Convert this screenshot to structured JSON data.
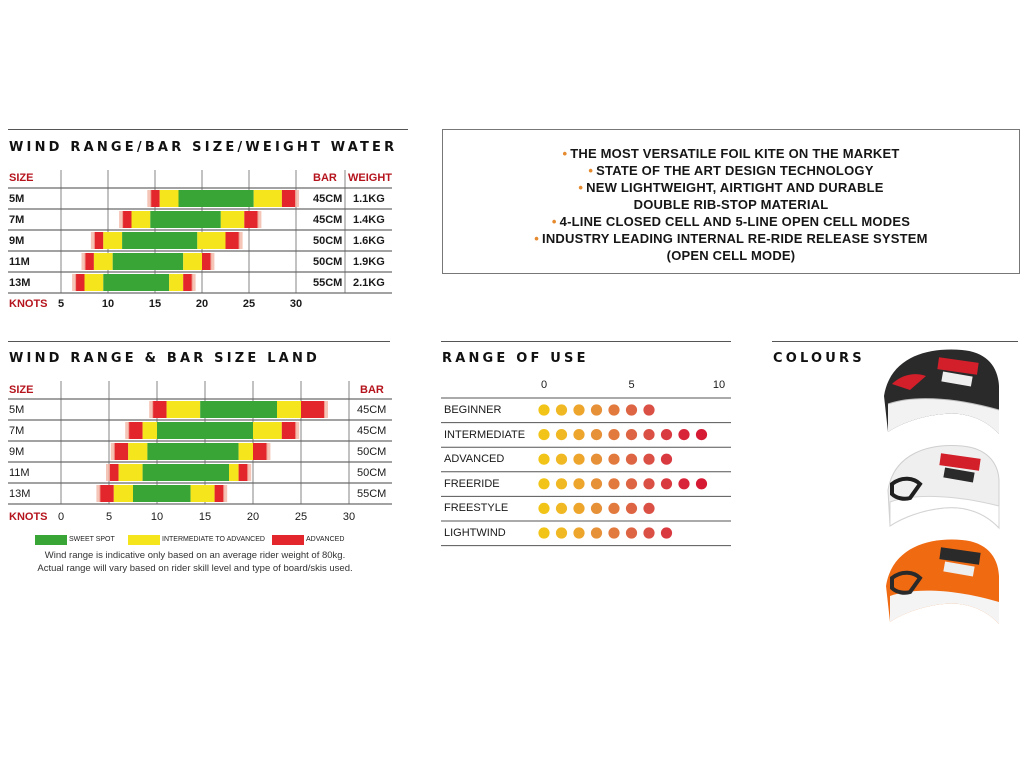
{
  "water": {
    "title": "WIND RANGE/BAR SIZE/WEIGHT WATER",
    "size_header": "SIZE",
    "bar_header": "BAR",
    "weight_header": "WEIGHT",
    "knots_label": "KNOTS",
    "ticks": [
      "5",
      "10",
      "15",
      "20",
      "25",
      "30"
    ],
    "rows": [
      {
        "size": "5M",
        "bar": "45CM",
        "weight": "1.1KG"
      },
      {
        "size": "7M",
        "bar": "45CM",
        "weight": "1.4KG"
      },
      {
        "size": "9M",
        "bar": "50CM",
        "weight": "1.6KG"
      },
      {
        "size": "11M",
        "bar": "50CM",
        "weight": "1.9KG"
      },
      {
        "size": "13M",
        "bar": "55CM",
        "weight": "2.1KG"
      }
    ]
  },
  "land": {
    "title": "WIND RANGE & BAR SIZE LAND",
    "size_header": "SIZE",
    "bar_header": "BAR",
    "knots_label": "KNOTS",
    "ticks": [
      "0",
      "5",
      "10",
      "15",
      "20",
      "25",
      "30"
    ],
    "rows": [
      {
        "size": "5M",
        "bar": "45CM"
      },
      {
        "size": "7M",
        "bar": "45CM"
      },
      {
        "size": "9M",
        "bar": "50CM"
      },
      {
        "size": "11M",
        "bar": "50CM"
      },
      {
        "size": "13M",
        "bar": "55CM"
      }
    ],
    "legend": {
      "sweet": "SWEET SPOT",
      "intermediate": "INTERMEDIATE TO ADVANCED",
      "advanced": "ADVANCED"
    },
    "note_line1": "Wind range is indicative only based on an average rider weight of 80kg.",
    "note_line2": "Actual range will vary based on rider skill level and type of board/skis used."
  },
  "features": [
    {
      "text": "THE MOST VERSATILE FOIL KITE ON THE MARKET",
      "bullet": true
    },
    {
      "text": "STATE OF THE ART DESIGN TECHNOLOGY",
      "bullet": true
    },
    {
      "text": "NEW LIGHTWEIGHT, AIRTIGHT AND DURABLE",
      "bullet": true
    },
    {
      "text": "DOUBLE RIB-STOP MATERIAL",
      "bullet": false
    },
    {
      "text": "4-LINE CLOSED CELL AND 5-LINE OPEN CELL MODES",
      "bullet": true
    },
    {
      "text": "INDUSTRY LEADING INTERNAL RE-RIDE RELEASE SYSTEM",
      "bullet": true
    },
    {
      "text": "(OPEN CELL MODE)",
      "bullet": false
    }
  ],
  "range_of_use": {
    "title": "RANGE OF USE",
    "ticks": [
      "0",
      "5",
      "10"
    ],
    "rows": [
      {
        "label": "BEGINNER",
        "count": 7
      },
      {
        "label": "INTERMEDIATE",
        "count": 10
      },
      {
        "label": "ADVANCED",
        "count": 8
      },
      {
        "label": "FREERIDE",
        "count": 10
      },
      {
        "label": "FREESTYLE",
        "count": 7
      },
      {
        "label": "LIGHTWIND",
        "count": 8
      }
    ],
    "dot_colors": [
      "#f2c418",
      "#f0b822",
      "#eda52c",
      "#e69037",
      "#e27a3e",
      "#de6543",
      "#db5045",
      "#d93a40",
      "#d8253a",
      "#d61a33"
    ]
  },
  "colours": {
    "title": "COLOURS",
    "kites": [
      {
        "name": "black",
        "body": "#2a2a2a"
      },
      {
        "name": "white",
        "body": "#eeeeee"
      },
      {
        "name": "orange",
        "body": "#f06a12"
      }
    ]
  },
  "colors": {
    "sweet": "#3aa537",
    "intermediate": "#f4e51d",
    "advanced": "#e3262b",
    "label_red": "#b5141d"
  },
  "chart_data": [
    {
      "type": "bar",
      "title": "WIND RANGE/BAR SIZE/WEIGHT WATER",
      "xlabel": "KNOTS",
      "xlim": [
        3,
        31
      ],
      "categories": [
        "5M",
        "7M",
        "9M",
        "11M",
        "13M"
      ],
      "series": [
        {
          "name": "ADVANCED",
          "ranges": [
            [
              14.5,
              15.5
            ],
            [
              11.5,
              12.5
            ],
            [
              8.5,
              9.5
            ],
            [
              7.5,
              8.5
            ],
            [
              6.5,
              7.5
            ]
          ]
        },
        {
          "name": "INTERMEDIATE TO ADVANCED",
          "ranges": [
            [
              15.5,
              17.5
            ],
            [
              12.5,
              14.5
            ],
            [
              9.5,
              11.5
            ],
            [
              8.5,
              10.5
            ],
            [
              7.5,
              9.5
            ]
          ]
        },
        {
          "name": "SWEET SPOT",
          "ranges": [
            [
              17.5,
              25.5
            ],
            [
              14.5,
              22
            ],
            [
              11.5,
              19.5
            ],
            [
              10.5,
              18
            ],
            [
              9.5,
              16.5
            ]
          ]
        },
        {
          "name": "INTERMEDIATE TO ADVANCED",
          "ranges": [
            [
              25.5,
              28.5
            ],
            [
              22,
              24.5
            ],
            [
              19.5,
              22.5
            ],
            [
              18,
              20
            ],
            [
              16.5,
              18
            ]
          ]
        },
        {
          "name": "ADVANCED",
          "ranges": [
            [
              28.5,
              30
            ],
            [
              24.5,
              26
            ],
            [
              22.5,
              24
            ],
            [
              20,
              21
            ],
            [
              18,
              19
            ]
          ]
        }
      ]
    },
    {
      "type": "bar",
      "title": "WIND RANGE & BAR SIZE LAND",
      "xlabel": "KNOTS",
      "xlim": [
        0,
        30
      ],
      "categories": [
        "5M",
        "7M",
        "9M",
        "11M",
        "13M"
      ],
      "series": [
        {
          "name": "ADVANCED",
          "ranges": [
            [
              9.5,
              11
            ],
            [
              7,
              8.5
            ],
            [
              5.5,
              7
            ],
            [
              5,
              6
            ],
            [
              4,
              5.5
            ]
          ]
        },
        {
          "name": "INTERMEDIATE TO ADVANCED",
          "ranges": [
            [
              11,
              14.5
            ],
            [
              8.5,
              10
            ],
            [
              7,
              9
            ],
            [
              6,
              8.5
            ],
            [
              5.5,
              7.5
            ]
          ]
        },
        {
          "name": "SWEET SPOT",
          "ranges": [
            [
              14.5,
              22.5
            ],
            [
              10,
              20
            ],
            [
              9,
              18.5
            ],
            [
              8.5,
              17.5
            ],
            [
              7.5,
              13.5
            ]
          ]
        },
        {
          "name": "INTERMEDIATE TO ADVANCED",
          "ranges": [
            [
              22.5,
              25
            ],
            [
              20,
              23
            ],
            [
              18.5,
              20
            ],
            [
              17.5,
              18.5
            ],
            [
              13.5,
              16
            ]
          ]
        },
        {
          "name": "ADVANCED",
          "ranges": [
            [
              25,
              27.5
            ],
            [
              23,
              24.5
            ],
            [
              20,
              21.5
            ],
            [
              18.5,
              19.5
            ],
            [
              16,
              17
            ]
          ]
        }
      ]
    },
    {
      "type": "scatter",
      "title": "RANGE OF USE",
      "xlim": [
        0,
        10
      ],
      "categories": [
        "BEGINNER",
        "INTERMEDIATE",
        "ADVANCED",
        "FREERIDE",
        "FREESTYLE",
        "LIGHTWIND"
      ],
      "values": [
        7,
        10,
        8,
        10,
        7,
        8
      ]
    }
  ]
}
